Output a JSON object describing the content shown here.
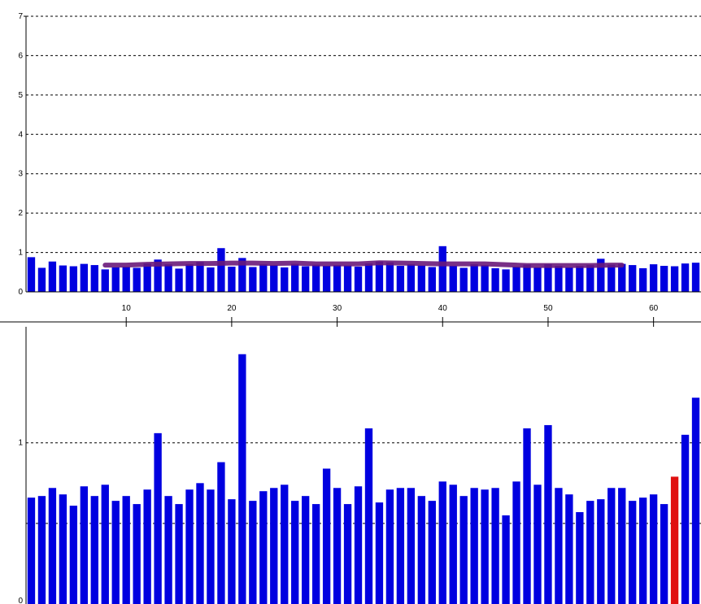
{
  "colors": {
    "bar": "#0000e0",
    "highlight": "#e01010",
    "trend": "#6a1a7a",
    "grid": "#000000"
  },
  "chart_data": [
    {
      "type": "bar",
      "name": "top-panel",
      "ylim": [
        0,
        7
      ],
      "xlim": [
        0.5,
        64.5
      ],
      "yticks": [
        "0",
        "1",
        "2",
        "3",
        "4",
        "5",
        "6",
        "7"
      ],
      "xticks": [
        "10",
        "20",
        "30",
        "40",
        "50",
        "60"
      ],
      "grid": true,
      "x": [
        1,
        2,
        3,
        4,
        5,
        6,
        7,
        8,
        9,
        10,
        11,
        12,
        13,
        14,
        15,
        16,
        17,
        18,
        19,
        20,
        21,
        22,
        23,
        24,
        25,
        26,
        27,
        28,
        29,
        30,
        31,
        32,
        33,
        34,
        35,
        36,
        37,
        38,
        39,
        40,
        41,
        42,
        43,
        44,
        45,
        46,
        47,
        48,
        49,
        50,
        51,
        52,
        53,
        54,
        55,
        56,
        57,
        58,
        59,
        60,
        61,
        62,
        63,
        64
      ],
      "values": [
        0.88,
        0.61,
        0.77,
        0.67,
        0.65,
        0.71,
        0.68,
        0.57,
        0.62,
        0.64,
        0.61,
        0.72,
        0.82,
        0.7,
        0.59,
        0.7,
        0.76,
        0.62,
        1.11,
        0.64,
        0.86,
        0.63,
        0.7,
        0.68,
        0.62,
        0.71,
        0.65,
        0.69,
        0.66,
        0.68,
        0.67,
        0.64,
        0.72,
        0.77,
        0.75,
        0.66,
        0.7,
        0.67,
        0.63,
        1.16,
        0.66,
        0.61,
        0.7,
        0.68,
        0.6,
        0.57,
        0.64,
        0.69,
        0.62,
        0.7,
        0.66,
        0.62,
        0.66,
        0.68,
        0.84,
        0.69,
        0.71,
        0.68,
        0.6,
        0.7,
        0.66,
        0.65,
        0.72,
        0.74
      ],
      "trend": {
        "x": [
          8,
          10,
          12,
          14,
          16,
          18,
          20,
          22,
          24,
          26,
          28,
          30,
          32,
          34,
          36,
          38,
          40,
          42,
          44,
          46,
          48,
          50,
          52,
          54,
          56,
          57
        ],
        "values": [
          0.68,
          0.68,
          0.7,
          0.71,
          0.72,
          0.72,
          0.73,
          0.73,
          0.72,
          0.73,
          0.71,
          0.71,
          0.71,
          0.74,
          0.73,
          0.72,
          0.71,
          0.71,
          0.71,
          0.69,
          0.67,
          0.67,
          0.67,
          0.67,
          0.68,
          0.68
        ]
      }
    },
    {
      "type": "bar",
      "name": "bottom-panel",
      "ylim": [
        0,
        1.72
      ],
      "xlim": [
        0.5,
        64.5
      ],
      "yticks": [
        "0",
        "1"
      ],
      "grid": true,
      "values": [
        0.66,
        0.67,
        0.72,
        0.68,
        0.61,
        0.73,
        0.67,
        0.74,
        0.64,
        0.67,
        0.62,
        0.71,
        1.06,
        0.67,
        0.62,
        0.71,
        0.75,
        0.71,
        0.88,
        0.65,
        1.55,
        0.64,
        0.7,
        0.72,
        0.74,
        0.64,
        0.67,
        0.62,
        0.84,
        0.72,
        0.62,
        0.73,
        1.09,
        0.63,
        0.71,
        0.72,
        0.72,
        0.67,
        0.64,
        0.76,
        0.74,
        0.67,
        0.72,
        0.71,
        0.72,
        0.55,
        0.76,
        1.09,
        0.74,
        1.11,
        0.72,
        0.68,
        0.57,
        0.64,
        0.65,
        0.72,
        0.72,
        0.64,
        0.66,
        0.68,
        0.62,
        0.79,
        1.05,
        1.28
      ],
      "highlight_index": 61
    }
  ]
}
